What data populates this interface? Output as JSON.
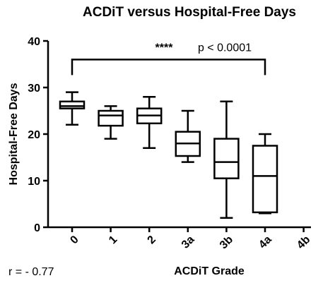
{
  "chart_data": {
    "type": "box",
    "title": "ACDiT versus Hospital-Free Days",
    "xlabel": "ACDiT Grade",
    "ylabel": "Hospital-Free Days",
    "ylim": [
      0,
      40
    ],
    "yticks": [
      0,
      10,
      20,
      30,
      40
    ],
    "categories": [
      "0",
      "1",
      "2",
      "3a",
      "3b",
      "4a",
      "4b"
    ],
    "boxes": [
      {
        "category": "0",
        "min": 22,
        "q1": 25.5,
        "median": 26,
        "q3": 27,
        "max": 29
      },
      {
        "category": "1",
        "min": 19,
        "q1": 21.8,
        "median": 24,
        "q3": 25,
        "max": 26
      },
      {
        "category": "2",
        "min": 17,
        "q1": 22.3,
        "median": 24,
        "q3": 25.5,
        "max": 28
      },
      {
        "category": "3a",
        "min": 14,
        "q1": 15.3,
        "median": 18,
        "q3": 20.5,
        "max": 25
      },
      {
        "category": "3b",
        "min": 2,
        "q1": 10.5,
        "median": 14,
        "q3": 19,
        "max": 27
      },
      {
        "category": "4a",
        "min": 3,
        "q1": 3.2,
        "median": 11,
        "q3": 17.5,
        "max": 20
      },
      {
        "category": "4b",
        "min": null,
        "q1": null,
        "median": null,
        "q3": null,
        "max": null
      }
    ],
    "annotation": {
      "from": "0",
      "to": "4a",
      "y": 36,
      "stars": "****",
      "p_text": "p < 0.0001"
    },
    "correlation_text": "r = - 0.77"
  }
}
